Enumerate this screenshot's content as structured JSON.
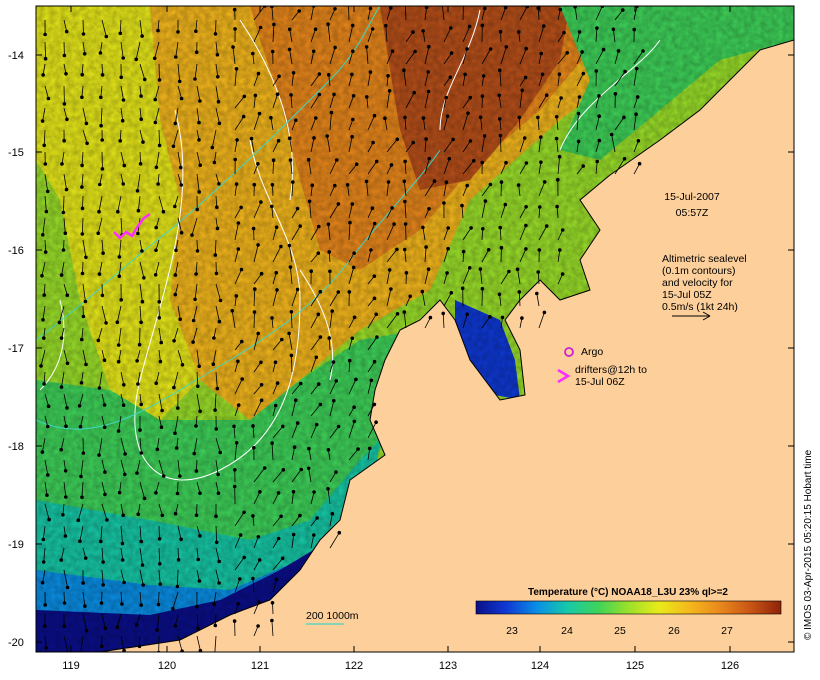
{
  "map": {
    "lat_ticks": [
      "-14",
      "-15",
      "-16",
      "-17",
      "-18",
      "-19",
      "-20"
    ],
    "lon_ticks": [
      "119",
      "120",
      "121",
      "122",
      "123",
      "124",
      "125",
      "126"
    ],
    "timestamp": {
      "date": "15-Jul-2007",
      "time": "05:57Z"
    },
    "altimetry_note": [
      "Altimetric sealevel",
      "(0.1m contours)",
      "and velocity for",
      "15-Jul 05Z",
      "0.5m/s (1kt 24h)"
    ],
    "argo_label": "Argo",
    "drifters_label": [
      "drifters@12h to",
      "15-Jul 06Z"
    ],
    "isobath_label": "200  1000m",
    "colorbar": {
      "title": "Temperature (°C) NOAA18_L3U 23% ql>=2",
      "ticks": [
        "23",
        "24",
        "25",
        "26",
        "27"
      ],
      "colors": [
        "#0b0f8a",
        "#0f39d4",
        "#0a8fe6",
        "#17c9a8",
        "#3fd35a",
        "#9be02a",
        "#e9ea1a",
        "#f5b81d",
        "#e9881c",
        "#c85515",
        "#8e2308"
      ]
    },
    "credit": "© IMOS 03-Apr-2015 05:20:15 Hobart time",
    "colors": {
      "land": "#fdcf9a",
      "sea_cold": "#0b0f8a",
      "sea_warm": "#c85515",
      "contour": "#ffffff",
      "isobath": "#3fd6c4",
      "drifter": "#ff2cff"
    }
  }
}
